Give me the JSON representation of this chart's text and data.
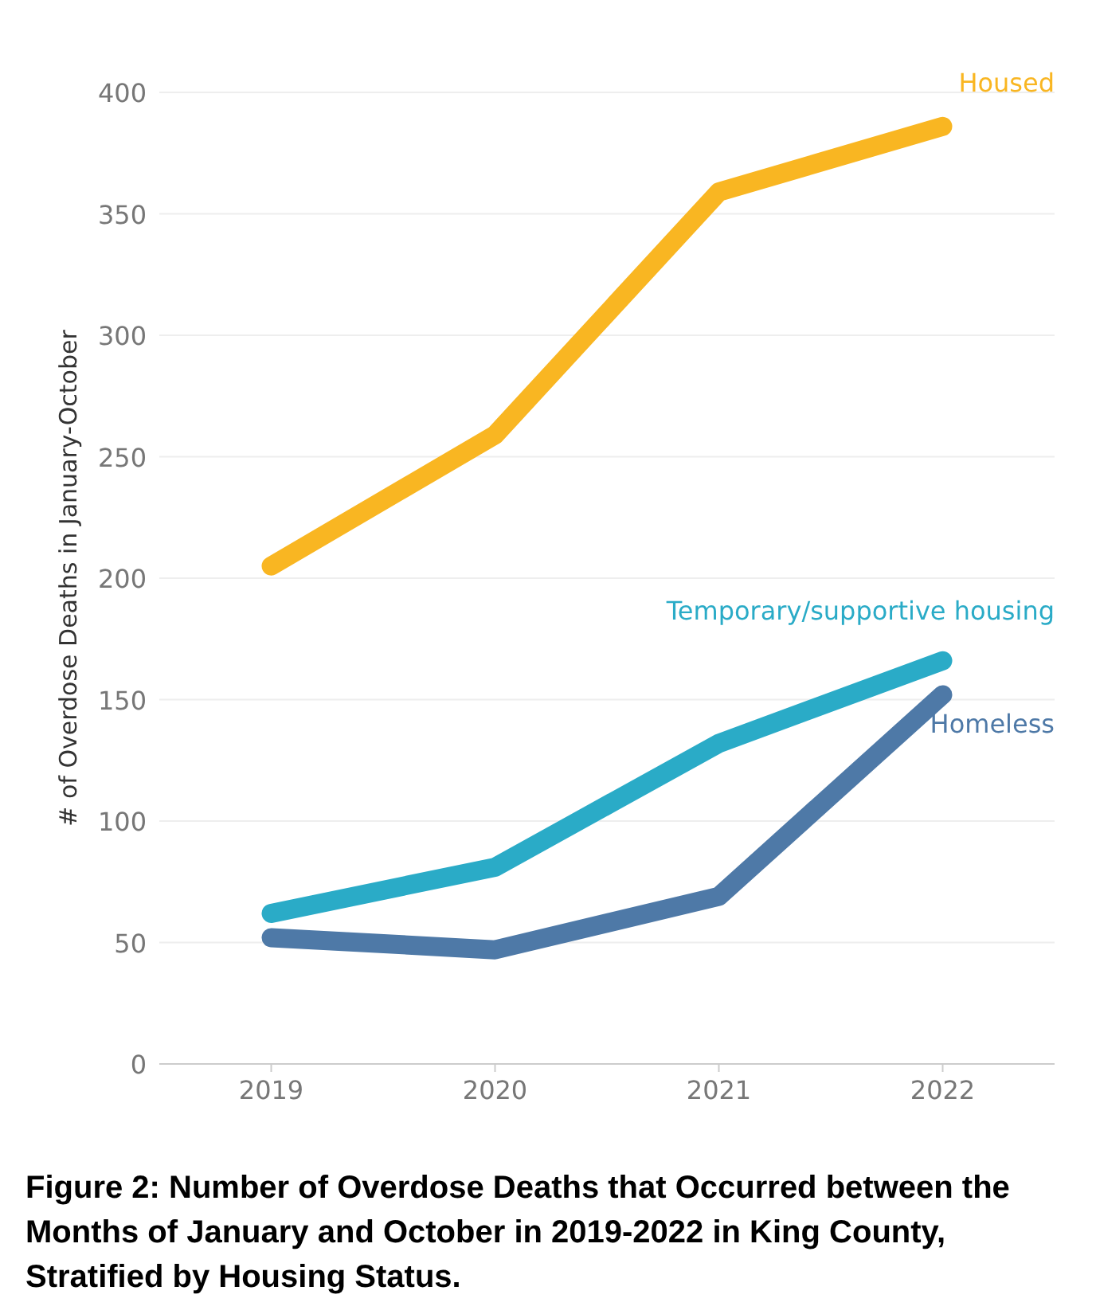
{
  "chart_data": {
    "type": "line",
    "ylabel": "# of Overdose Deaths in January-October",
    "categories": [
      "2019",
      "2020",
      "2021",
      "2022"
    ],
    "series": [
      {
        "name": "Housed",
        "color": "#f9b622",
        "values": [
          205,
          259,
          359,
          386
        ]
      },
      {
        "name": "Temporary/supportive housing",
        "color": "#2aabc7",
        "values": [
          62,
          81,
          132,
          166
        ]
      },
      {
        "name": "Homeless",
        "color": "#4e79a7",
        "values": [
          52,
          47,
          69,
          152
        ]
      }
    ],
    "ylim": [
      0,
      400
    ],
    "yticks": [
      0,
      50,
      100,
      150,
      200,
      250,
      300,
      350,
      400
    ],
    "grid": "y",
    "marker": "none",
    "line_style": "solid",
    "annotations": [
      "Figure 2: Number of Overdose Deaths that Occurred between the Months of January and October in 2019-2022 in King County, Stratified by Housing Status."
    ]
  }
}
